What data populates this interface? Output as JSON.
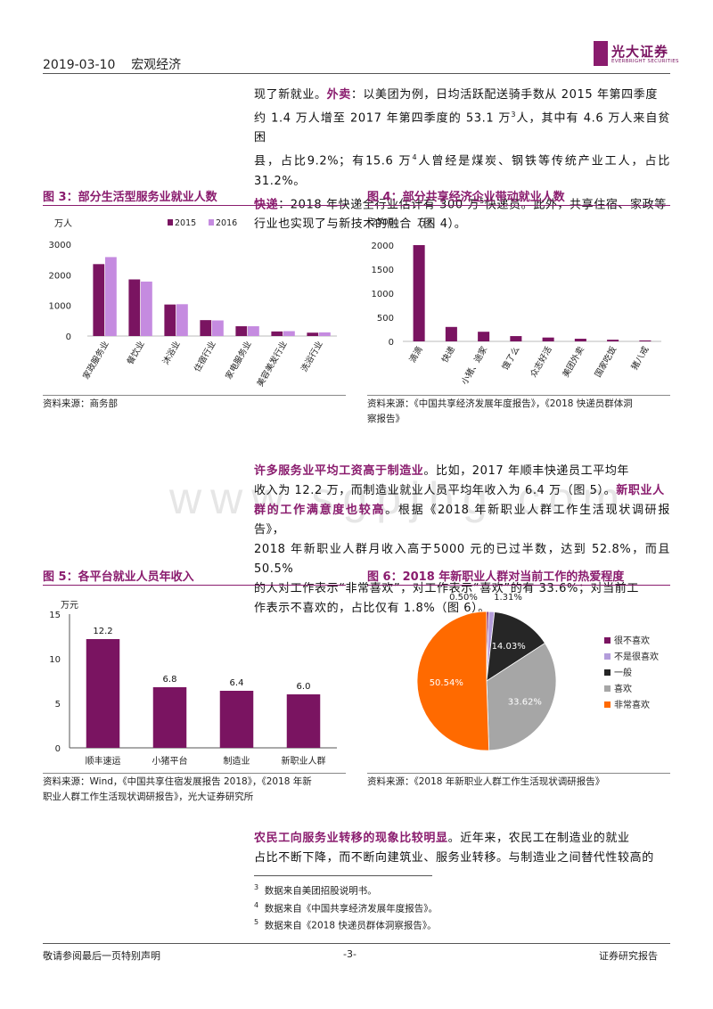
{
  "header": {
    "date": "2019-03-10",
    "category": "宏观经济",
    "logo_cn": "光大证券",
    "logo_en": "EVERBRIGHT SECURITIES"
  },
  "intro": {
    "line1": "现了新就业。",
    "waimai_label": "外卖",
    "line1b": "：以美团为例，日均活跃配送骑手数从 2015 年第四季度",
    "line2a": "约 1.4 万人增至 2017 年第四季度的 53.1 万",
    "sup3": "3",
    "line2b": "人，其中有 4.6 万人来自贫困",
    "line3a": "县，占比9.2%；有15.6 万",
    "sup4": "4",
    "line3b": "人曾经是煤炭、钢铁等传统产业工人，占比31.2%。",
    "kuaidi_label": "快递",
    "line4a": "：2018 年快递全行业估计有 300 万",
    "sup5": "5",
    "line4b": "快递员。此外，共享住宿、家政等",
    "line5": "行业也实现了与新技术的融合（图 4）。"
  },
  "fig3": {
    "title": "图 3：部分生活型服务业就业人数",
    "source": "资料来源：商务部"
  },
  "fig4": {
    "title": "图 4：部分共享经济企业带动就业人数",
    "source_line1": "资料来源：《中国共享经济发展年度报告》，《2018 快递员群体洞",
    "source_line2": "察报告》"
  },
  "para2": {
    "bold1": "许多服务业平均工资高于制造业",
    "t1": "。比如，2017 年顺丰快递员工平均年",
    "t2a": "收入为 12.2 万，而制造业就业人员平均年收入为 6.4 万（图 5）。",
    "bold2a": "新职业人",
    "bold2b": "群的工作满意度也较高",
    "t3": "。根据《2018 年新职业人群工作生活现状调研报告》，",
    "t4": "2018 年新职业人群月收入高于5000 元的已过半数，达到 52.8%，而且50.5%",
    "t5": "的人对工作表示“非常喜欢”，对工作表示“喜欢”的有 33.6%；对当前工",
    "t6": "作表示不喜欢的，占比仅有 1.8%（图 6）。"
  },
  "fig5": {
    "title": "图 5：各平台就业人员年收入",
    "source_line1": "资料来源：Wind，《中国共享住宿发展报告 2018》，《2018 年新",
    "source_line2": "职业人群工作生活现状调研报告》，光大证券研究所"
  },
  "fig6": {
    "title": "图 6：2018 年新职业人群对当前工作的热爱程度",
    "source": "资料来源：《2018 年新职业人群工作生活现状调研报告》"
  },
  "para3": {
    "bold": "农民工向服务业转移的现象比较明显",
    "t1": "。近年来，农民工在制造业的就业",
    "t2": "占比不断下降，而不断向建筑业、服务业转移。与制造业之间替代性较高的"
  },
  "footnotes": [
    {
      "num": "3",
      "text": "数据来自美团招股说明书。"
    },
    {
      "num": "4",
      "text": "数据来自《中国共享经济发展年度报告》。"
    },
    {
      "num": "5",
      "text": "数据来自《2018 快递员群体洞察报告》。"
    }
  ],
  "footer": {
    "left": "敬请参阅最后一页特别声明",
    "page": "-3-",
    "right": "证券研究报告"
  },
  "watermark": "www.sgpjbg.com",
  "colors": {
    "accent": "#8a1c6e",
    "bar_2015": "#7a1461",
    "bar_2016": "#c58be0",
    "pie_very_like": "#ff6a00",
    "pie_like": "#a6a6a6",
    "pie_neutral": "#262626",
    "pie_not_very": "#b39ddb",
    "pie_dislike": "#7a1461"
  },
  "chart_data": [
    {
      "id": "fig3",
      "type": "bar",
      "ylabel": "万人",
      "ylim": [
        0,
        3000
      ],
      "yticks": [
        0,
        1000,
        2000,
        3000
      ],
      "categories": [
        "家政服务业",
        "餐饮业",
        "沐浴业",
        "住宿行业",
        "家电服务业",
        "美容美发行业",
        "洗浴行业"
      ],
      "series": [
        {
          "name": "2015",
          "values": [
            2350,
            1850,
            1030,
            520,
            320,
            150,
            110
          ]
        },
        {
          "name": "2016",
          "values": [
            2580,
            1780,
            1040,
            510,
            320,
            160,
            120
          ]
        }
      ],
      "legend": "top"
    },
    {
      "id": "fig4",
      "type": "bar",
      "ylabel": "万人",
      "ylim": [
        0,
        2500
      ],
      "yticks": [
        0,
        500,
        1000,
        1500,
        2000,
        2500
      ],
      "categories": [
        "滴滴",
        "快递",
        "小猪、途家",
        "饿了么",
        "众志好活",
        "美团外卖",
        "国家吃饭",
        "猪八戒"
      ],
      "values": [
        2000,
        300,
        200,
        110,
        80,
        55,
        35,
        20
      ]
    },
    {
      "id": "fig5",
      "type": "bar",
      "ylabel": "万元",
      "ylim": [
        0,
        15
      ],
      "yticks": [
        0,
        5,
        10,
        15
      ],
      "categories": [
        "顺丰速运",
        "小猪平台",
        "制造业",
        "新职业人群"
      ],
      "values": [
        12.2,
        6.8,
        6.4,
        6.0
      ],
      "data_labels": [
        "12.2",
        "6.8",
        "6.4",
        "6.0"
      ]
    },
    {
      "id": "fig6",
      "type": "pie",
      "labels": [
        "很不喜欢",
        "不是很喜欢",
        "一般",
        "喜欢",
        "非常喜欢"
      ],
      "values": [
        0.5,
        1.31,
        14.03,
        33.62,
        50.54
      ],
      "data_labels": [
        "0.50%",
        "1.31%",
        "14.03%",
        "33.62%",
        "50.54%"
      ],
      "legend": "right"
    }
  ]
}
